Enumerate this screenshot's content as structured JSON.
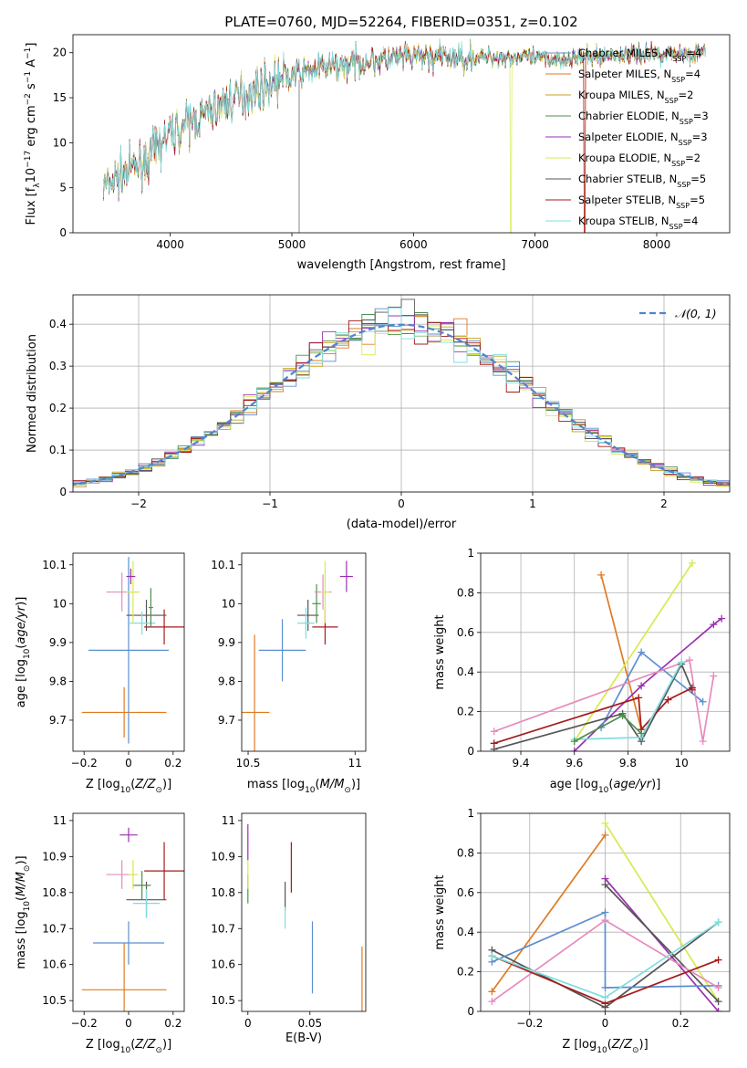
{
  "colors": {
    "chabrier_miles": "#5B8FCF",
    "salpeter_miles": "#E07B22",
    "kroupa_miles": "#C8A020",
    "chabrier_elodie": "#4E8F4E",
    "salpeter_elodie": "#9A2FB0",
    "kroupa_elodie": "#D7EA4F",
    "chabrier_stelib": "#555555",
    "salpeter_stelib": "#A61B1B",
    "kroupa_stelib": "#7FDDE0",
    "pink": "#E68BBF",
    "gauss": "#4F84D2"
  },
  "chart_data": [
    {
      "id": "spectrum",
      "type": "line",
      "title": "PLATE=0760, MJD=52264, FIBERID=0351, z=0.102",
      "xlabel": "wavelength [Angstrom, rest frame]",
      "ylabel": "Flux [f_λ10^-17 erg cm^-2 s^-1 A^-1]",
      "xlim": [
        3200,
        8600
      ],
      "ylim": [
        0,
        22
      ],
      "xticks": [
        4000,
        5000,
        6000,
        7000,
        8000
      ],
      "yticks": [
        0,
        5,
        10,
        15,
        20
      ],
      "grid": false,
      "legend": "top-right",
      "series": [
        {
          "name": "Chabrier MILES, N_SSP=4"
        },
        {
          "name": "Salpeter MILES, N_SSP=4"
        },
        {
          "name": "Kroupa MILES, N_SSP=2"
        },
        {
          "name": "Chabrier ELODIE, N_SSP=3"
        },
        {
          "name": "Salpeter ELODIE, N_SSP=3"
        },
        {
          "name": "Kroupa ELODIE, N_SSP=2"
        },
        {
          "name": "Chabrier STELIB, N_SSP=5"
        },
        {
          "name": "Salpeter STELIB, N_SSP=5"
        },
        {
          "name": "Kroupa STELIB, N_SSP=4"
        }
      ],
      "continuum": {
        "x": [
          3450,
          3600,
          3800,
          4000,
          4200,
          4400,
          4600,
          4800,
          5000,
          5200,
          5400,
          5600,
          5800,
          6000,
          6200,
          6400,
          6600,
          6800,
          7000,
          7200,
          7400,
          7600,
          7800,
          8000,
          8200,
          8400
        ],
        "y": [
          5.0,
          6.5,
          8.0,
          11.0,
          12.5,
          14.0,
          15.3,
          16.5,
          17.5,
          18.2,
          18.6,
          19.0,
          19.3,
          19.5,
          19.5,
          19.4,
          19.5,
          19.5,
          19.4,
          19.3,
          19.5,
          19.7,
          19.8,
          19.9,
          19.9,
          20.0
        ]
      }
    },
    {
      "id": "residuals",
      "type": "histogram",
      "xlabel": "(data-model)/error",
      "ylabel": "Normed distribution",
      "xlim": [
        -2.5,
        2.5
      ],
      "ylim": [
        0,
        0.47
      ],
      "xticks": [
        -2,
        -1,
        0,
        1,
        2
      ],
      "yticks": [
        0.0,
        0.1,
        0.2,
        0.3,
        0.4
      ],
      "grid": true,
      "legend": "top-right",
      "gaussian": {
        "name": "𝒩(0, 1)",
        "mean": 0,
        "sigma": 1
      },
      "bin_width": 0.1
    },
    {
      "id": "age-vs-Z",
      "type": "errorbar",
      "xlabel": "Z [log10(Z/Z⊙)]",
      "ylabel": "age  [log10(age/yr)]",
      "xlim": [
        -0.25,
        0.25
      ],
      "ylim": [
        9.62,
        10.13
      ],
      "xticks": [
        -0.2,
        0.0,
        0.2
      ],
      "yticks": [
        9.7,
        9.8,
        9.9,
        10.0,
        10.1
      ],
      "points": [
        {
          "c": "salpeter_miles",
          "x": -0.02,
          "xe": 0.19,
          "y": 9.72,
          "ye": 0.065
        },
        {
          "c": "chabrier_miles",
          "x": 0.0,
          "xe": 0.18,
          "y": 9.88,
          "ye": 0.24
        },
        {
          "c": "salpeter_stelib",
          "x": 0.16,
          "xe": 0.09,
          "y": 9.94,
          "ye": 0.045
        },
        {
          "c": "chabrier_stelib",
          "x": 0.08,
          "xe": 0.09,
          "y": 9.97,
          "ye": 0.04
        },
        {
          "c": "kroupa_stelib",
          "x": 0.06,
          "xe": 0.06,
          "y": 9.95,
          "ye": 0.03
        },
        {
          "c": "chabrier_elodie",
          "x": 0.1,
          "xe": 0.01,
          "y": 9.99,
          "ye": 0.05
        },
        {
          "c": "pink",
          "x": -0.03,
          "xe": 0.07,
          "y": 10.03,
          "ye": 0.05
        },
        {
          "c": "kroupa_elodie",
          "x": 0.02,
          "xe": 0.03,
          "y": 10.03,
          "ye": 0.08
        },
        {
          "c": "salpeter_elodie",
          "x": 0.01,
          "xe": 0.02,
          "y": 10.07,
          "ye": 0.02
        }
      ]
    },
    {
      "id": "age-vs-mass",
      "type": "errorbar",
      "xlabel": "mass [log10(M/M⊙)]",
      "ylabel": "",
      "xlim": [
        10.47,
        11.05
      ],
      "ylim": [
        9.62,
        10.13
      ],
      "xticks": [
        10.5,
        11.0
      ],
      "yticks": [
        9.7,
        9.8,
        9.9,
        10.0,
        10.1
      ],
      "points": [
        {
          "c": "salpeter_miles",
          "x": 10.53,
          "xe": 0.07,
          "y": 9.72,
          "ye": 0.2
        },
        {
          "c": "chabrier_miles",
          "x": 10.66,
          "xe": 0.11,
          "y": 9.88,
          "ye": 0.08
        },
        {
          "c": "salpeter_stelib",
          "x": 10.86,
          "xe": 0.06,
          "y": 9.94,
          "ye": 0.045
        },
        {
          "c": "chabrier_stelib",
          "x": 10.78,
          "xe": 0.05,
          "y": 9.97,
          "ye": 0.04
        },
        {
          "c": "kroupa_stelib",
          "x": 10.77,
          "xe": 0.04,
          "y": 9.95,
          "ye": 0.04
        },
        {
          "c": "chabrier_elodie",
          "x": 10.82,
          "xe": 0.02,
          "y": 10.0,
          "ye": 0.05
        },
        {
          "c": "pink",
          "x": 10.85,
          "xe": 0.04,
          "y": 10.03,
          "ye": 0.045
        },
        {
          "c": "kroupa_elodie",
          "x": 10.86,
          "xe": 0.02,
          "y": 10.03,
          "ye": 0.08
        },
        {
          "c": "salpeter_elodie",
          "x": 10.96,
          "xe": 0.03,
          "y": 10.07,
          "ye": 0.04
        }
      ]
    },
    {
      "id": "mass-weight-vs-age",
      "type": "line",
      "xlabel": "age  [log10(age/yr)]",
      "ylabel": "mass weight",
      "xlim": [
        9.25,
        10.18
      ],
      "ylim": [
        0,
        1.0
      ],
      "xticks": [
        9.4,
        9.6,
        9.8,
        10.0
      ],
      "yticks": [
        0.0,
        0.2,
        0.4,
        0.6,
        0.8,
        1.0
      ],
      "grid": true,
      "series": [
        {
          "c": "salpeter_miles",
          "x": [
            9.7,
            9.85
          ],
          "y": [
            0.89,
            0.11
          ]
        },
        {
          "c": "kroupa_elodie",
          "x": [
            9.6,
            10.04
          ],
          "y": [
            0.05,
            0.95
          ]
        },
        {
          "c": "salpeter_elodie",
          "x": [
            9.6,
            9.85,
            10.12,
            10.15
          ],
          "y": [
            0.0,
            0.33,
            0.64,
            0.67
          ]
        },
        {
          "c": "chabrier_miles",
          "x": [
            9.7,
            9.85,
            10.08
          ],
          "y": [
            0.12,
            0.5,
            0.25
          ]
        },
        {
          "c": "pink",
          "x": [
            9.3,
            10.03,
            10.08,
            10.12
          ],
          "y": [
            0.1,
            0.46,
            0.05,
            0.38
          ]
        },
        {
          "c": "chabrier_stelib",
          "x": [
            9.3,
            9.78,
            9.85,
            10.0,
            10.04
          ],
          "y": [
            0.01,
            0.19,
            0.05,
            0.44,
            0.31
          ]
        },
        {
          "c": "salpeter_stelib",
          "x": [
            9.3,
            9.84,
            9.85,
            9.95,
            10.04
          ],
          "y": [
            0.04,
            0.27,
            0.11,
            0.26,
            0.32
          ]
        },
        {
          "c": "kroupa_stelib",
          "x": [
            9.6,
            9.85,
            10.0
          ],
          "y": [
            0.06,
            0.07,
            0.45
          ]
        },
        {
          "c": "chabrier_elodie",
          "x": [
            9.6,
            9.78,
            9.85
          ],
          "y": [
            0.05,
            0.18,
            0.09
          ]
        }
      ]
    },
    {
      "id": "mass-vs-Z",
      "type": "errorbar",
      "xlabel": "Z [log10(Z/Z⊙)]",
      "ylabel": "mass [log10(M/M⊙)]",
      "xlim": [
        -0.25,
        0.25
      ],
      "ylim": [
        10.47,
        11.02
      ],
      "xticks": [
        -0.2,
        0.0,
        0.2
      ],
      "yticks": [
        10.5,
        10.6,
        10.7,
        10.8,
        10.9,
        11.0
      ],
      "points": [
        {
          "c": "salpeter_miles",
          "x": -0.02,
          "xe": 0.19,
          "y": 10.53,
          "ye": 0.13
        },
        {
          "c": "chabrier_miles",
          "x": 0.0,
          "xe": 0.16,
          "y": 10.66,
          "ye": 0.06
        },
        {
          "c": "salpeter_stelib",
          "x": 0.16,
          "xe": 0.09,
          "y": 10.86,
          "ye": 0.08
        },
        {
          "c": "chabrier_stelib",
          "x": 0.08,
          "xe": 0.09,
          "y": 10.78,
          "ye": 0.05
        },
        {
          "c": "kroupa_stelib",
          "x": 0.08,
          "xe": 0.06,
          "y": 10.77,
          "ye": 0.04
        },
        {
          "c": "chabrier_elodie",
          "x": 0.06,
          "xe": 0.04,
          "y": 10.82,
          "ye": 0.04
        },
        {
          "c": "pink",
          "x": -0.03,
          "xe": 0.07,
          "y": 10.85,
          "ye": 0.04
        },
        {
          "c": "kroupa_elodie",
          "x": 0.02,
          "xe": 0.02,
          "y": 10.85,
          "ye": 0.04
        },
        {
          "c": "salpeter_elodie",
          "x": 0.0,
          "xe": 0.04,
          "y": 10.96,
          "ye": 0.02
        }
      ]
    },
    {
      "id": "mass-vs-ebv",
      "type": "errorbar",
      "xlabel": "E(B-V)",
      "ylabel": "",
      "xlim": [
        -0.005,
        0.095
      ],
      "ylim": [
        10.47,
        11.02
      ],
      "xticks": [
        0.0,
        0.05
      ],
      "yticks": [
        10.5,
        10.6,
        10.7,
        10.8,
        10.9,
        11.0
      ],
      "points": [
        {
          "c": "salpeter_miles",
          "x": 0.092,
          "xe": 0.0,
          "y": 10.56,
          "ye": 0.09
        },
        {
          "c": "chabrier_miles",
          "x": 0.052,
          "xe": 0.0,
          "y": 10.62,
          "ye": 0.1
        },
        {
          "c": "salpeter_stelib",
          "x": 0.035,
          "xe": 0.0,
          "y": 10.87,
          "ye": 0.07
        },
        {
          "c": "chabrier_stelib",
          "x": 0.03,
          "xe": 0.0,
          "y": 10.79,
          "ye": 0.04
        },
        {
          "c": "kroupa_stelib",
          "x": 0.03,
          "xe": 0.0,
          "y": 10.73,
          "ye": 0.03
        },
        {
          "c": "chabrier_elodie",
          "x": 0.0,
          "xe": 0.0,
          "y": 10.81,
          "ye": 0.04
        },
        {
          "c": "kroupa_elodie",
          "x": 0.0,
          "xe": 0.0,
          "y": 10.85,
          "ye": 0.04
        },
        {
          "c": "salpeter_elodie",
          "x": 0.0,
          "xe": 0.0,
          "y": 10.94,
          "ye": 0.05
        }
      ]
    },
    {
      "id": "mass-weight-vs-Z",
      "type": "line",
      "xlabel": "Z [log10(Z/Z⊙)]",
      "ylabel": "mass weight",
      "xlim": [
        -0.33,
        0.33
      ],
      "ylim": [
        0,
        1.0
      ],
      "xticks": [
        -0.2,
        0.0,
        0.2
      ],
      "yticks": [
        0.0,
        0.2,
        0.4,
        0.6,
        0.8,
        1.0
      ],
      "grid": true,
      "series": [
        {
          "c": "salpeter_miles",
          "x": [
            -0.3,
            0.0
          ],
          "y": [
            0.1,
            0.89
          ]
        },
        {
          "c": "kroupa_elodie",
          "x": [
            0.0,
            0.3
          ],
          "y": [
            0.95,
            0.05
          ]
        },
        {
          "c": "salpeter_elodie",
          "x": [
            0.0,
            0.3
          ],
          "y": [
            0.67,
            0.0
          ]
        },
        {
          "c": "chabrier_stelib",
          "x": [
            -0.3,
            0.0,
            0.3
          ],
          "y": [
            0.31,
            0.02,
            0.45
          ]
        },
        {
          "c": "chabrier_stelib",
          "x": [
            0.0,
            0.3
          ],
          "y": [
            0.64,
            0.05
          ]
        },
        {
          "c": "chabrier_miles",
          "x": [
            -0.3,
            0.0,
            0.0,
            0.3
          ],
          "y": [
            0.25,
            0.5,
            0.12,
            0.13
          ]
        },
        {
          "c": "pink",
          "x": [
            -0.3,
            0.0,
            0.3
          ],
          "y": [
            0.05,
            0.46,
            0.12
          ]
        },
        {
          "c": "salpeter_stelib",
          "x": [
            -0.3,
            0.0,
            0.3
          ],
          "y": [
            0.28,
            0.04,
            0.26
          ]
        },
        {
          "c": "kroupa_stelib",
          "x": [
            -0.3,
            0.0,
            0.3
          ],
          "y": [
            0.28,
            0.07,
            0.45
          ]
        }
      ]
    }
  ]
}
